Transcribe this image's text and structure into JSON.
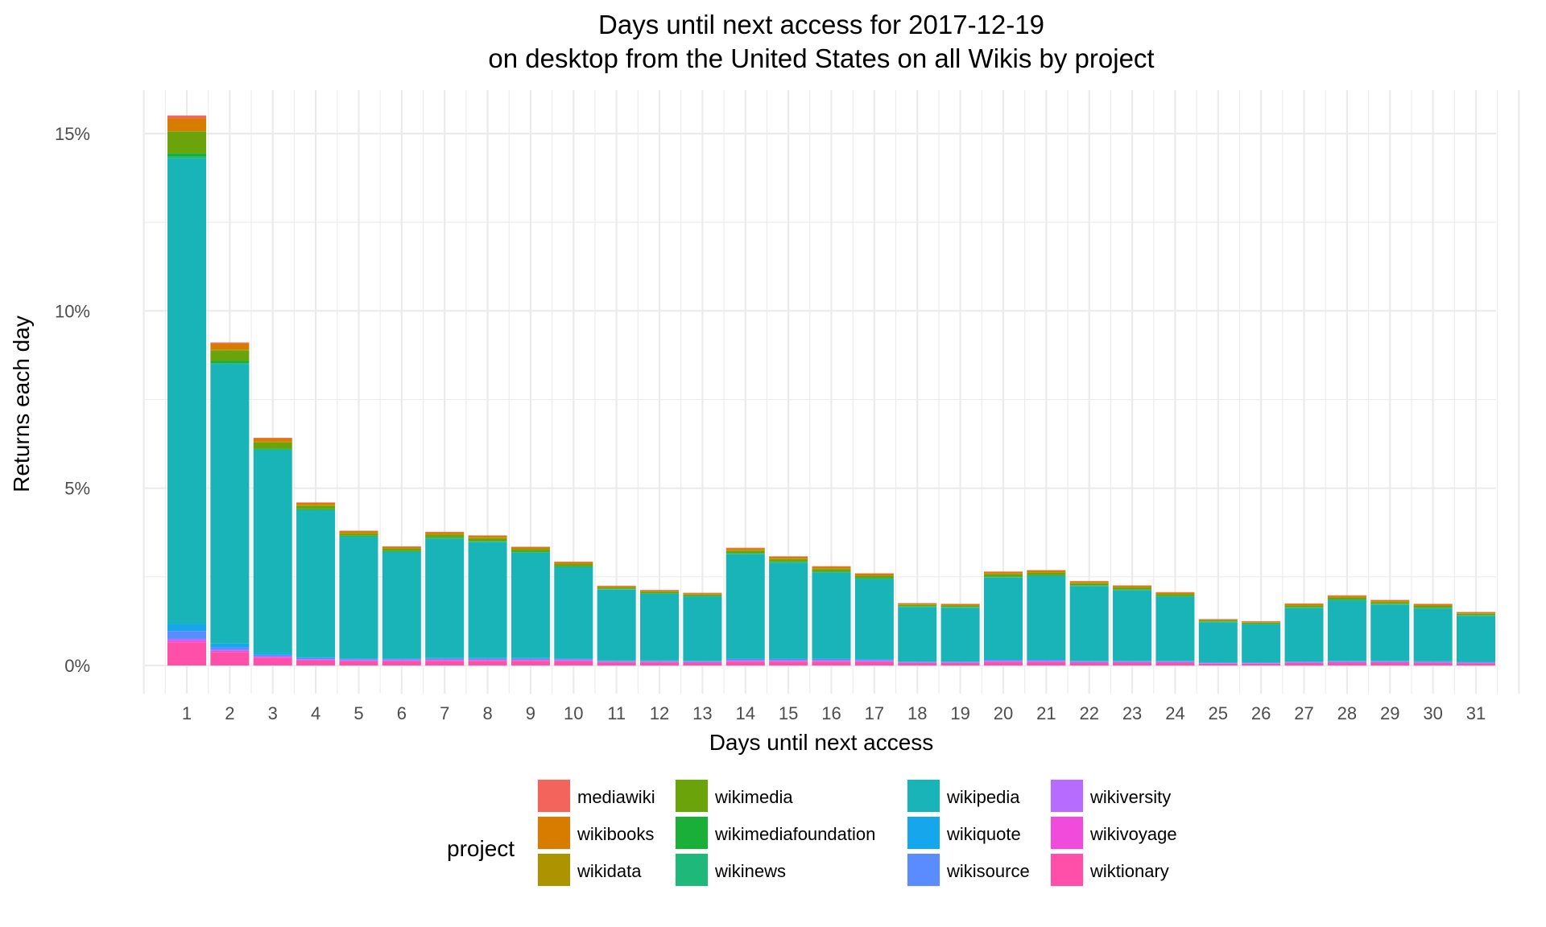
{
  "chart_data": {
    "type": "bar",
    "stacked": true,
    "title": "Days until next access for 2017-12-19",
    "subtitle": "on desktop from the United States on all Wikis by project",
    "xlabel": "Days until next access",
    "ylabel": "Returns each day",
    "ylim": [
      -0.8,
      15.8
    ],
    "yticks": [
      "0%",
      "5%",
      "10%",
      "15%"
    ],
    "ytick_values": [
      0,
      5,
      10,
      15
    ],
    "grid": true,
    "categories": [
      "1",
      "2",
      "3",
      "4",
      "5",
      "6",
      "7",
      "8",
      "9",
      "10",
      "11",
      "12",
      "13",
      "14",
      "15",
      "16",
      "17",
      "18",
      "19",
      "20",
      "21",
      "22",
      "23",
      "24",
      "25",
      "26",
      "27",
      "28",
      "29",
      "30",
      "31"
    ],
    "legend": {
      "title": "project",
      "position": "bottom"
    },
    "series": [
      {
        "name": "wiktionary",
        "color": "#FF4FA8",
        "values": [
          0.65,
          0.38,
          0.22,
          0.14,
          0.12,
          0.12,
          0.13,
          0.13,
          0.13,
          0.12,
          0.09,
          0.09,
          0.08,
          0.11,
          0.11,
          0.11,
          0.1,
          0.07,
          0.07,
          0.09,
          0.09,
          0.08,
          0.08,
          0.08,
          0.05,
          0.05,
          0.07,
          0.08,
          0.08,
          0.07,
          0.06
        ]
      },
      {
        "name": "wikivoyage",
        "color": "#F04BDB",
        "values": [
          0.05,
          0.03,
          0.02,
          0.02,
          0.02,
          0.02,
          0.02,
          0.02,
          0.02,
          0.02,
          0.01,
          0.01,
          0.01,
          0.02,
          0.02,
          0.02,
          0.02,
          0.01,
          0.01,
          0.02,
          0.02,
          0.01,
          0.01,
          0.01,
          0.01,
          0.01,
          0.01,
          0.01,
          0.01,
          0.01,
          0.01
        ]
      },
      {
        "name": "wikiversity",
        "color": "#B86CFF",
        "values": [
          0.05,
          0.03,
          0.02,
          0.02,
          0.02,
          0.02,
          0.02,
          0.02,
          0.02,
          0.02,
          0.01,
          0.01,
          0.01,
          0.02,
          0.02,
          0.02,
          0.02,
          0.01,
          0.01,
          0.02,
          0.02,
          0.01,
          0.01,
          0.01,
          0.01,
          0.01,
          0.01,
          0.01,
          0.01,
          0.01,
          0.01
        ]
      },
      {
        "name": "wikisource",
        "color": "#5A8CFF",
        "values": [
          0.22,
          0.08,
          0.04,
          0.03,
          0.02,
          0.02,
          0.02,
          0.02,
          0.02,
          0.02,
          0.02,
          0.02,
          0.02,
          0.02,
          0.02,
          0.02,
          0.02,
          0.01,
          0.01,
          0.02,
          0.02,
          0.02,
          0.02,
          0.02,
          0.01,
          0.01,
          0.01,
          0.02,
          0.02,
          0.02,
          0.01
        ]
      },
      {
        "name": "wikiquote",
        "color": "#16A6EC",
        "values": [
          0.2,
          0.1,
          0.05,
          0.03,
          0.02,
          0.02,
          0.02,
          0.02,
          0.02,
          0.02,
          0.01,
          0.01,
          0.01,
          0.02,
          0.02,
          0.02,
          0.02,
          0.01,
          0.01,
          0.02,
          0.02,
          0.01,
          0.01,
          0.01,
          0.01,
          0.01,
          0.01,
          0.01,
          0.01,
          0.01,
          0.01
        ]
      },
      {
        "name": "wikipedia",
        "color": "#19B4B7",
        "values": [
          13.13,
          7.88,
          5.72,
          4.14,
          3.43,
          3.0,
          3.37,
          3.27,
          2.97,
          2.57,
          2.0,
          1.88,
          1.81,
          2.95,
          2.71,
          2.43,
          2.26,
          1.54,
          1.52,
          2.31,
          2.35,
          2.11,
          1.99,
          1.81,
          1.13,
          1.07,
          1.51,
          1.71,
          1.59,
          1.49,
          1.3
        ]
      },
      {
        "name": "wikinews",
        "color": "#1DB87A",
        "values": [
          0.05,
          0.03,
          0.02,
          0.01,
          0.01,
          0.01,
          0.01,
          0.01,
          0.01,
          0.01,
          0.01,
          0.01,
          0.01,
          0.01,
          0.01,
          0.01,
          0.01,
          0.01,
          0.01,
          0.01,
          0.01,
          0.01,
          0.01,
          0.01,
          0.01,
          0.01,
          0.01,
          0.01,
          0.01,
          0.01,
          0.01
        ]
      },
      {
        "name": "wikimediafoundation",
        "color": "#19AF39",
        "values": [
          0.1,
          0.06,
          0.03,
          0.02,
          0.02,
          0.02,
          0.02,
          0.02,
          0.02,
          0.02,
          0.01,
          0.01,
          0.01,
          0.02,
          0.02,
          0.02,
          0.02,
          0.01,
          0.01,
          0.02,
          0.02,
          0.01,
          0.01,
          0.01,
          0.01,
          0.01,
          0.01,
          0.01,
          0.01,
          0.01,
          0.01
        ]
      },
      {
        "name": "wikimedia",
        "color": "#6BA30A",
        "values": [
          0.6,
          0.3,
          0.17,
          0.1,
          0.06,
          0.06,
          0.08,
          0.08,
          0.07,
          0.06,
          0.04,
          0.04,
          0.04,
          0.07,
          0.07,
          0.07,
          0.06,
          0.04,
          0.04,
          0.07,
          0.07,
          0.06,
          0.06,
          0.05,
          0.03,
          0.03,
          0.05,
          0.06,
          0.05,
          0.05,
          0.04
        ]
      },
      {
        "name": "wikidata",
        "color": "#AB9400",
        "values": [
          0.03,
          0.02,
          0.02,
          0.01,
          0.01,
          0.01,
          0.01,
          0.01,
          0.01,
          0.01,
          0.01,
          0.01,
          0.01,
          0.01,
          0.01,
          0.01,
          0.01,
          0.01,
          0.01,
          0.01,
          0.01,
          0.01,
          0.01,
          0.01,
          0.01,
          0.01,
          0.01,
          0.01,
          0.01,
          0.01,
          0.01
        ]
      },
      {
        "name": "wikibooks",
        "color": "#D87C00",
        "values": [
          0.35,
          0.17,
          0.09,
          0.07,
          0.06,
          0.05,
          0.06,
          0.06,
          0.05,
          0.05,
          0.03,
          0.03,
          0.03,
          0.06,
          0.06,
          0.06,
          0.05,
          0.03,
          0.03,
          0.05,
          0.05,
          0.04,
          0.04,
          0.04,
          0.02,
          0.02,
          0.04,
          0.04,
          0.04,
          0.04,
          0.03
        ]
      },
      {
        "name": "mediawiki",
        "color": "#F2645C",
        "values": [
          0.08,
          0.03,
          0.02,
          0.01,
          0.01,
          0.01,
          0.01,
          0.01,
          0.01,
          0.01,
          0.01,
          0.01,
          0.01,
          0.01,
          0.01,
          0.01,
          0.01,
          0.01,
          0.01,
          0.01,
          0.01,
          0.01,
          0.01,
          0.01,
          0.01,
          0.01,
          0.01,
          0.01,
          0.01,
          0.01,
          0.01
        ]
      }
    ],
    "legend_order": [
      "mediawiki",
      "wikibooks",
      "wikidata",
      "wikimedia",
      "wikimediafoundation",
      "wikinews",
      "wikipedia",
      "wikiquote",
      "wikisource",
      "wikiversity",
      "wikivoyage",
      "wiktionary"
    ]
  }
}
